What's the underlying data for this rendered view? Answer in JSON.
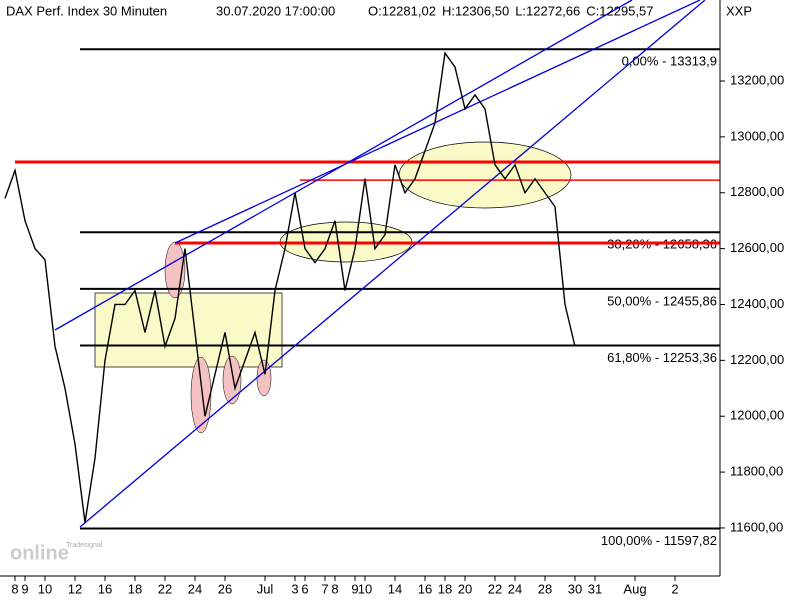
{
  "chart_data": {
    "type": "line",
    "title": "DAX Perf. Index 30 Minuten",
    "timestamp": "30.07.2020 17:00:00",
    "ohlc_labels": [
      {
        "label": "O:12281,02",
        "color": "#e00000"
      },
      {
        "label": "H:12306,50",
        "color": "#000000"
      },
      {
        "label": "L:12272,66",
        "color": "#000000"
      },
      {
        "label": "C:12295,57",
        "color": "#00a000"
      }
    ],
    "axis_name": "XXP",
    "logo": {
      "small": "Tradesignal",
      "big": "online"
    },
    "categories": [
      "",
      "8",
      "9",
      null,
      "10",
      null,
      null,
      "12",
      null,
      null,
      "16",
      null,
      null,
      "18",
      null,
      null,
      "22",
      null,
      null,
      "24",
      null,
      null,
      "26",
      null,
      null,
      null,
      "Jul",
      null,
      null,
      "3",
      "6",
      null,
      "7",
      "8",
      null,
      "9",
      "10",
      null,
      null,
      "14",
      null,
      null,
      "16",
      null,
      "18",
      null,
      "20",
      null,
      null,
      "22",
      null,
      "24",
      null,
      null,
      "28",
      null,
      null,
      "30",
      null,
      "31",
      null,
      null,
      null,
      "Aug",
      null,
      null,
      null,
      "2",
      null,
      null,
      null,
      null
    ],
    "series": [
      {
        "name": "DAX",
        "color": "#000000",
        "values": [
          12780,
          12880,
          12700,
          12600,
          12560,
          12250,
          12100,
          11900,
          11620,
          11850,
          12200,
          12400,
          12400,
          12450,
          12300,
          12450,
          12250,
          12350,
          12600,
          12300,
          12000,
          12150,
          12300,
          12100,
          12200,
          12300,
          12150,
          12450,
          12600,
          12800,
          12600,
          12550,
          12600,
          12700,
          12450,
          12600,
          12850,
          12600,
          12650,
          12900,
          12800,
          12850,
          12950,
          13050,
          13300,
          13250,
          13100,
          13150,
          13100,
          12900,
          12850,
          12900,
          12800,
          12850,
          12800,
          12750,
          12400,
          12250,
          null,
          null,
          null,
          null,
          null,
          null,
          null,
          null,
          null,
          null,
          null,
          null,
          null,
          null
        ]
      }
    ],
    "fib_levels": [
      {
        "value": 13313.9,
        "label": "0,00% - 13313,9"
      },
      {
        "value": 12658.36,
        "label": "38,20% - 12658,36"
      },
      {
        "value": 12455.86,
        "label": "50,00% - 12455,86"
      },
      {
        "value": 12253.36,
        "label": "61,80% - 12253,36"
      },
      {
        "value": 11597.82,
        "label": "100,00% - 11597,82"
      }
    ],
    "support_lines": [
      {
        "value": 12910,
        "color": "#ff0000"
      },
      {
        "value": 12845,
        "color": "#ff0000"
      },
      {
        "value": 12620,
        "color": "#ff0000"
      }
    ],
    "ylim": [
      11428,
      13490
    ],
    "yticks": [
      {
        "value": 11600,
        "label": "11600,00"
      },
      {
        "value": 11800,
        "label": "11800,00"
      },
      {
        "value": 12000,
        "label": "12000,00"
      },
      {
        "value": 12200,
        "label": "12200,00"
      },
      {
        "value": 12400,
        "label": "12400,00"
      },
      {
        "value": 12600,
        "label": "12600,00"
      },
      {
        "value": 12800,
        "label": "12800,00"
      },
      {
        "value": 13000,
        "label": "13000,00"
      },
      {
        "value": 13200,
        "label": "13200,00"
      }
    ]
  }
}
